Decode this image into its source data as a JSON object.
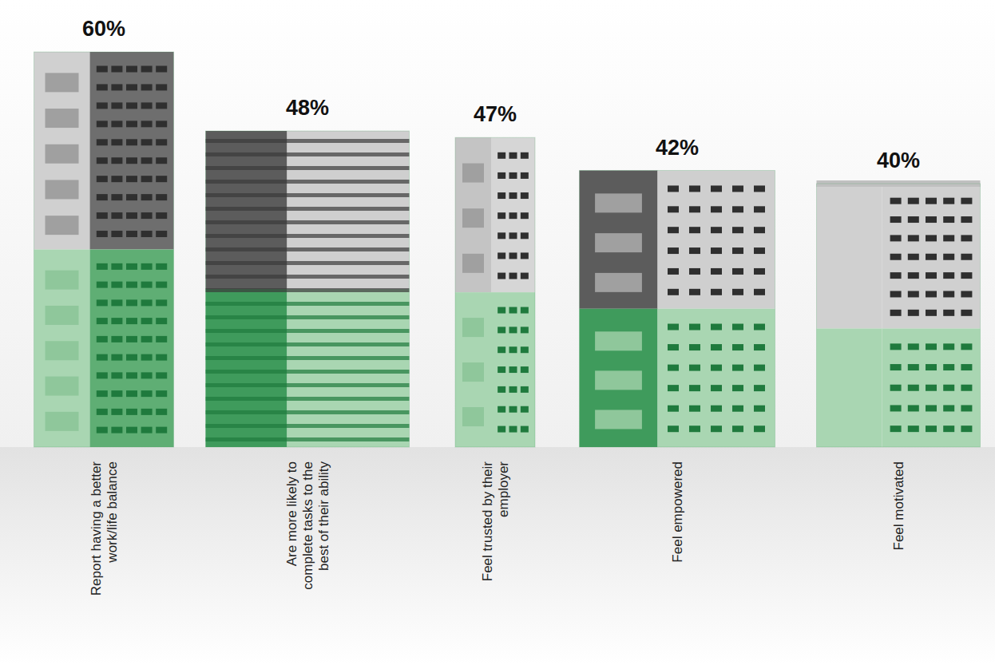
{
  "chart_data": {
    "type": "bar",
    "categories": [
      "Report having a better work/life balance",
      "Are more likely to complete tasks to the best of their ability",
      "Feel trusted by their employer",
      "Feel empowered",
      "Feel motivated"
    ],
    "values": [
      60,
      48,
      47,
      42,
      40
    ],
    "value_labels": [
      "60%",
      "48%",
      "47%",
      "42%",
      "40%"
    ],
    "data_labels": true,
    "tick_labels": "x",
    "color": "#3f9b5c"
  }
}
